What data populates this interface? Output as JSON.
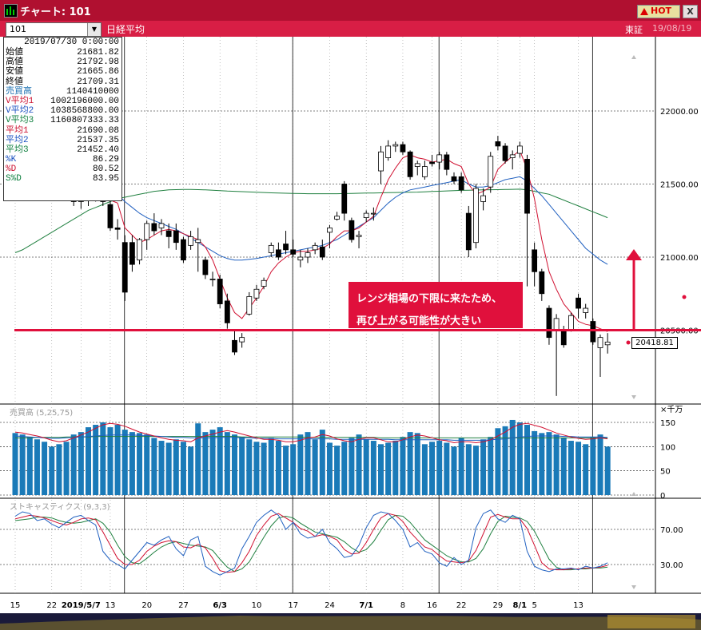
{
  "window": {
    "title": "チャート: 101",
    "hot_label": "HOT",
    "close_label": "X"
  },
  "toolbar": {
    "symbol": "101",
    "index_name": "日経平均",
    "exchange": "東証",
    "date": "19/08/19"
  },
  "data_panel": {
    "datetime": "2019/07/30 0:00:00",
    "rows": [
      {
        "label": "始値",
        "value": "21681.82",
        "color": "#000000"
      },
      {
        "label": "高値",
        "value": "21792.98",
        "color": "#000000"
      },
      {
        "label": "安値",
        "value": "21665.86",
        "color": "#000000"
      },
      {
        "label": "終値",
        "value": "21709.31",
        "color": "#000000"
      },
      {
        "label": "売買高",
        "value": "1140410000",
        "color": "#1a6fb0"
      },
      {
        "label": "V平均1",
        "value": "1002196000.00",
        "color": "#cc1030"
      },
      {
        "label": "V平均2",
        "value": "1038568800.00",
        "color": "#1a50c0"
      },
      {
        "label": "V平均3",
        "value": "1160807333.33",
        "color": "#108040"
      },
      {
        "label": "平均1",
        "value": "21690.08",
        "color": "#cc1030"
      },
      {
        "label": "平均2",
        "value": "21537.35",
        "color": "#1a50c0"
      },
      {
        "label": "平均3",
        "value": "21452.40",
        "color": "#108040"
      },
      {
        "label": "%K",
        "value": "86.29",
        "color": "#1a50c0"
      },
      {
        "label": "%D",
        "value": "80.52",
        "color": "#cc1030"
      },
      {
        "label": "S%D",
        "value": "83.95",
        "color": "#108040"
      }
    ]
  },
  "price_axis_labels": [
    "22000.00",
    "21500.00",
    "21000.00",
    "20500.00"
  ],
  "current_price": "20418.81",
  "support_level": 20500,
  "annotation": {
    "line1": "レンジ相場の下限に来たため、",
    "line2": "再び上がる可能性が大きい"
  },
  "volume_panel": {
    "title": "売買高 (5,25,75)",
    "unit": "×千万",
    "axis_labels": [
      "150",
      "100",
      "50",
      "0"
    ]
  },
  "stoch_panel": {
    "title": "ストキャスティクス (9,3,3)",
    "axis_labels": [
      "70.00",
      "30.00"
    ]
  },
  "x_axis_labels": [
    {
      "label": "15",
      "idx": 0
    },
    {
      "label": "22",
      "idx": 5
    },
    {
      "label": "2019/5/7",
      "idx": 9
    },
    {
      "label": "13",
      "idx": 13
    },
    {
      "label": "20",
      "idx": 18
    },
    {
      "label": "27",
      "idx": 23
    },
    {
      "label": "6/3",
      "idx": 28
    },
    {
      "label": "10",
      "idx": 33
    },
    {
      "label": "17",
      "idx": 38
    },
    {
      "label": "24",
      "idx": 43
    },
    {
      "label": "7/1",
      "idx": 48
    },
    {
      "label": "8",
      "idx": 53
    },
    {
      "label": "16",
      "idx": 57
    },
    {
      "label": "22",
      "idx": 61
    },
    {
      "label": "29",
      "idx": 66
    },
    {
      "label": "8/1",
      "idx": 69
    },
    {
      "label": "5",
      "idx": 71
    },
    {
      "label": "13",
      "idx": 77
    }
  ],
  "colors": {
    "bull": "#ffffff",
    "bear": "#000000",
    "ma_short": "#d01030",
    "ma_mid": "#2060c0",
    "ma_long": "#208040",
    "volume_bar": "#1a7ab8",
    "support_line": "#e0103c",
    "arrow": "#e0103c",
    "annotation_text": "#ffffff"
  },
  "chart_data": {
    "type": "candlestick",
    "candles": [
      [
        21900,
        21970,
        21800,
        21830
      ],
      [
        21830,
        21900,
        21700,
        21720
      ],
      [
        21720,
        21800,
        21600,
        21620
      ],
      [
        21620,
        21700,
        21550,
        21580
      ],
      [
        21580,
        21650,
        21520,
        21530
      ],
      [
        21530,
        21600,
        21480,
        21500
      ],
      [
        21500,
        21580,
        21450,
        21520
      ],
      [
        21520,
        21560,
        21400,
        21430
      ],
      [
        21430,
        21480,
        21350,
        21380
      ],
      [
        21380,
        21450,
        21330,
        21400
      ],
      [
        21400,
        21480,
        21350,
        21450
      ],
      [
        21440,
        21500,
        21380,
        21420
      ],
      [
        21420,
        21480,
        21350,
        21380
      ],
      [
        21360,
        21400,
        21180,
        21200
      ],
      [
        21200,
        21260,
        21120,
        21190
      ],
      [
        21100,
        21150,
        20700,
        20760
      ],
      [
        21100,
        21150,
        20900,
        20950
      ],
      [
        20980,
        21130,
        20950,
        21120
      ],
      [
        21120,
        21250,
        21050,
        21230
      ],
      [
        21230,
        21300,
        21150,
        21180
      ],
      [
        21200,
        21260,
        21150,
        21230
      ],
      [
        21180,
        21230,
        21060,
        21140
      ],
      [
        21180,
        21230,
        21050,
        21100
      ],
      [
        21120,
        21140,
        20960,
        20980
      ],
      [
        21080,
        21180,
        21050,
        21140
      ],
      [
        21100,
        21200,
        20900,
        21120
      ],
      [
        20980,
        21000,
        20850,
        20880
      ],
      [
        20850,
        20900,
        20800,
        20850
      ],
      [
        20850,
        20880,
        20650,
        20680
      ],
      [
        20700,
        20750,
        20510,
        20550
      ],
      [
        20430,
        20500,
        20330,
        20350
      ],
      [
        20420,
        20480,
        20380,
        20450
      ],
      [
        20610,
        20760,
        20600,
        20730
      ],
      [
        20720,
        20810,
        20700,
        20780
      ],
      [
        20800,
        20860,
        20780,
        20840
      ],
      [
        21030,
        21100,
        21000,
        21080
      ],
      [
        21050,
        21100,
        20980,
        21000
      ],
      [
        21090,
        21180,
        21020,
        21050
      ],
      [
        21050,
        21120,
        21000,
        21020
      ],
      [
        20980,
        21050,
        20930,
        21000
      ],
      [
        21000,
        21060,
        20960,
        21030
      ],
      [
        21050,
        21100,
        21020,
        21080
      ],
      [
        21070,
        21120,
        20980,
        21000
      ],
      [
        21170,
        21220,
        21060,
        21200
      ],
      [
        21260,
        21310,
        21250,
        21280
      ],
      [
        21500,
        21520,
        21250,
        21300
      ],
      [
        21250,
        21270,
        21100,
        21120
      ],
      [
        21140,
        21180,
        21060,
        21150
      ],
      [
        21270,
        21320,
        21240,
        21300
      ],
      [
        21300,
        21340,
        21250,
        21300
      ],
      [
        21590,
        21760,
        21500,
        21720
      ],
      [
        21680,
        21800,
        21660,
        21760
      ],
      [
        21760,
        21790,
        21720,
        21770
      ],
      [
        21770,
        21790,
        21700,
        21720
      ],
      [
        21720,
        21730,
        21530,
        21550
      ],
      [
        21620,
        21660,
        21560,
        21640
      ],
      [
        21550,
        21660,
        21530,
        21620
      ],
      [
        21650,
        21700,
        21620,
        21640
      ],
      [
        21650,
        21720,
        21600,
        21700
      ],
      [
        21700,
        21720,
        21560,
        21600
      ],
      [
        21550,
        21580,
        21500,
        21520
      ],
      [
        21550,
        21580,
        21440,
        21460
      ],
      [
        21300,
        21350,
        21000,
        21050
      ],
      [
        21100,
        21500,
        21060,
        21470
      ],
      [
        21380,
        21470,
        21320,
        21420
      ],
      [
        21480,
        21720,
        21440,
        21690
      ],
      [
        21790,
        21830,
        21730,
        21760
      ],
      [
        21760,
        21780,
        21640,
        21660
      ],
      [
        21680,
        21730,
        21600,
        21700
      ],
      [
        21710,
        21790,
        21680,
        21760
      ],
      [
        21670,
        21700,
        20800,
        21300
      ],
      [
        21050,
        21100,
        20800,
        20900
      ],
      [
        20900,
        20920,
        20700,
        20750
      ],
      [
        20650,
        20670,
        20400,
        20450
      ],
      [
        20500,
        20610,
        20050,
        20580
      ],
      [
        20500,
        20530,
        20380,
        20400
      ],
      [
        20500,
        20620,
        20490,
        20600
      ],
      [
        20720,
        20750,
        20580,
        20650
      ],
      [
        20620,
        20680,
        20580,
        20650
      ],
      [
        20560,
        20580,
        20400,
        20420
      ],
      [
        20380,
        20470,
        20180,
        20450
      ],
      [
        20400,
        20480,
        20340,
        20418.81
      ]
    ],
    "volume": [
      128,
      125,
      120,
      115,
      110,
      100,
      105,
      110,
      125,
      130,
      140,
      145,
      150,
      140,
      145,
      135,
      130,
      128,
      125,
      118,
      112,
      108,
      115,
      110,
      100,
      148,
      130,
      135,
      140,
      130,
      125,
      120,
      115,
      110,
      108,
      118,
      112,
      102,
      105,
      125,
      130,
      115,
      135,
      108,
      102,
      110,
      118,
      125,
      115,
      112,
      105,
      108,
      112,
      120,
      130,
      128,
      105,
      110,
      112,
      108,
      100,
      118,
      105,
      102,
      115,
      120,
      138,
      142,
      155,
      150,
      145,
      132,
      128,
      130,
      125,
      118,
      112,
      110,
      105,
      120,
      125,
      100
    ],
    "ma_price_short": [
      21890,
      21860,
      21830,
      21800,
      21780,
      21750,
      21720,
      21690,
      21640,
      21560,
      21480,
      21430,
      21410,
      21390,
      21370,
      21200,
      21150,
      21100,
      21120,
      21150,
      21180,
      21190,
      21180,
      21160,
      21140,
      21120,
      21070,
      20980,
      20850,
      20720,
      20620,
      20580,
      20650,
      20720,
      20800,
      20900,
      20960,
      21000,
      21030,
      21040,
      21040,
      21050,
      21060,
      21090,
      21140,
      21180,
      21180,
      21200,
      21240,
      21280,
      21410,
      21530,
      21610,
      21680,
      21700,
      21680,
      21670,
      21650,
      21660,
      21670,
      21640,
      21620,
      21500,
      21430,
      21450,
      21480,
      21600,
      21650,
      21690,
      21730,
      21600,
      21400,
      21120,
      20900,
      20780,
      20680,
      20620,
      20560,
      20540,
      20530,
      20510,
      20490
    ],
    "ma_price_mid": [
      21650,
      21670,
      21690,
      21690,
      21670,
      21650,
      21630,
      21610,
      21580,
      21550,
      21530,
      21510,
      21490,
      21460,
      21430,
      21380,
      21340,
      21300,
      21270,
      21250,
      21230,
      21210,
      21190,
      21160,
      21130,
      21100,
      21070,
      21040,
      21010,
      20990,
      20980,
      20980,
      20985,
      20990,
      21000,
      21010,
      21020,
      21030,
      21040,
      21050,
      21060,
      21070,
      21080,
      21100,
      21120,
      21150,
      21180,
      21210,
      21240,
      21270,
      21320,
      21370,
      21410,
      21440,
      21460,
      21470,
      21480,
      21490,
      21500,
      21510,
      21520,
      21530,
      21500,
      21480,
      21480,
      21490,
      21510,
      21530,
      21540,
      21550,
      21520,
      21470,
      21420,
      21360,
      21300,
      21240,
      21180,
      21120,
      21060,
      21020,
      20980,
      20950
    ],
    "ma_price_long": [
      21030,
      21050,
      21080,
      21110,
      21140,
      21170,
      21200,
      21230,
      21260,
      21290,
      21320,
      21340,
      21360,
      21380,
      21400,
      21410,
      21420,
      21430,
      21440,
      21450,
      21455,
      21460,
      21462,
      21463,
      21463,
      21462,
      21460,
      21458,
      21455,
      21452,
      21450,
      21448,
      21446,
      21444,
      21442,
      21440,
      21438,
      21437,
      21436,
      21435,
      21434,
      21434,
      21434,
      21434,
      21434,
      21435,
      21436,
      21437,
      21438,
      21439,
      21440,
      21441,
      21442,
      21443,
      21444,
      21445,
      21447,
      21449,
      21451,
      21453,
      21455,
      21457,
      21458,
      21459,
      21460,
      21461,
      21462,
      21463,
      21464,
      21465,
      21460,
      21450,
      21440,
      21430,
      21410,
      21390,
      21370,
      21350,
      21330,
      21310,
      21290,
      21270
    ],
    "ma_vol_short": [
      130,
      128,
      125,
      122,
      118,
      113,
      110,
      112,
      118,
      124,
      130,
      138,
      145,
      148,
      146,
      142,
      136,
      130,
      126,
      122,
      118,
      115,
      113,
      112,
      110,
      118,
      122,
      126,
      130,
      133,
      130,
      126,
      122,
      118,
      115,
      115,
      113,
      110,
      110,
      113,
      118,
      120,
      125,
      122,
      116,
      112,
      110,
      115,
      118,
      118,
      114,
      110,
      110,
      114,
      120,
      124,
      122,
      118,
      114,
      112,
      108,
      110,
      110,
      108,
      110,
      114,
      122,
      130,
      140,
      146,
      148,
      144,
      140,
      134,
      128,
      124,
      120,
      117,
      115,
      116,
      118,
      116
    ],
    "ma_vol_mid": [
      122,
      121,
      120,
      119,
      118,
      117,
      117,
      118,
      119,
      120,
      121,
      122,
      123,
      124,
      124,
      124,
      124,
      123,
      123,
      122,
      121,
      120,
      119,
      119,
      118,
      118,
      118,
      118,
      119,
      119,
      119,
      118,
      118,
      117,
      117,
      117,
      116,
      116,
      116,
      116,
      116,
      116,
      116,
      116,
      115,
      115,
      115,
      115,
      115,
      115,
      115,
      115,
      114,
      114,
      114,
      114,
      114,
      114,
      114,
      114,
      113,
      113,
      113,
      113,
      113,
      114,
      115,
      116,
      118,
      120,
      121,
      122,
      122,
      122,
      122,
      121,
      121,
      120,
      120,
      120,
      120,
      119
    ],
    "ma_vol_long": [
      118,
      118,
      118,
      119,
      119,
      119,
      119,
      120,
      120,
      120,
      120,
      121,
      121,
      121,
      121,
      121,
      121,
      121,
      121,
      121,
      121,
      121,
      121,
      121,
      121,
      121,
      121,
      121,
      121,
      121,
      121,
      120,
      120,
      120,
      120,
      120,
      120,
      120,
      120,
      120,
      119,
      119,
      119,
      119,
      119,
      119,
      119,
      119,
      119,
      119,
      118,
      118,
      118,
      118,
      118,
      118,
      118,
      118,
      118,
      118,
      118,
      118,
      118,
      118,
      118,
      118,
      118,
      118,
      118,
      118,
      118,
      118,
      118,
      118,
      118,
      118,
      118,
      118,
      118,
      118,
      118,
      118
    ],
    "stoch_k": [
      85,
      90,
      88,
      80,
      82,
      76,
      72,
      78,
      84,
      86,
      80,
      75,
      45,
      35,
      30,
      25,
      35,
      45,
      55,
      52,
      58,
      62,
      48,
      40,
      58,
      62,
      28,
      22,
      18,
      22,
      26,
      48,
      62,
      78,
      86,
      92,
      86,
      70,
      78,
      65,
      60,
      62,
      70,
      55,
      48,
      38,
      40,
      52,
      72,
      86,
      90,
      88,
      80,
      70,
      50,
      55,
      45,
      42,
      32,
      28,
      38,
      30,
      35,
      72,
      88,
      92,
      82,
      78,
      86,
      82,
      45,
      28,
      24,
      22,
      25,
      25,
      26,
      24,
      28,
      26,
      28,
      32
    ],
    "stoch_d": [
      82,
      84,
      86,
      85,
      83,
      80,
      77,
      75,
      78,
      82,
      83,
      81,
      67,
      52,
      37,
      30,
      30,
      35,
      45,
      51,
      55,
      57,
      56,
      50,
      49,
      53,
      49,
      37,
      23,
      21,
      22,
      32,
      45,
      63,
      75,
      85,
      88,
      83,
      78,
      71,
      68,
      62,
      64,
      62,
      58,
      47,
      42,
      43,
      55,
      70,
      83,
      88,
      86,
      79,
      67,
      58,
      50,
      47,
      40,
      34,
      33,
      32,
      34,
      46,
      65,
      84,
      87,
      84,
      82,
      82,
      71,
      52,
      32,
      25,
      24,
      24,
      25,
      25,
      26,
      26,
      27,
      29
    ],
    "stoch_sd": [
      80,
      81,
      82,
      84,
      84,
      83,
      80,
      78,
      77,
      78,
      80,
      82,
      77,
      67,
      52,
      39,
      32,
      31,
      37,
      44,
      50,
      54,
      56,
      54,
      52,
      51,
      50,
      46,
      36,
      27,
      22,
      25,
      33,
      47,
      61,
      74,
      83,
      85,
      83,
      77,
      72,
      67,
      65,
      63,
      61,
      56,
      49,
      44,
      47,
      56,
      69,
      81,
      86,
      85,
      78,
      68,
      58,
      52,
      46,
      40,
      36,
      33,
      33,
      37,
      48,
      65,
      79,
      85,
      84,
      83,
      79,
      68,
      52,
      36,
      27,
      24,
      24,
      25,
      25,
      26,
      26,
      27
    ]
  }
}
